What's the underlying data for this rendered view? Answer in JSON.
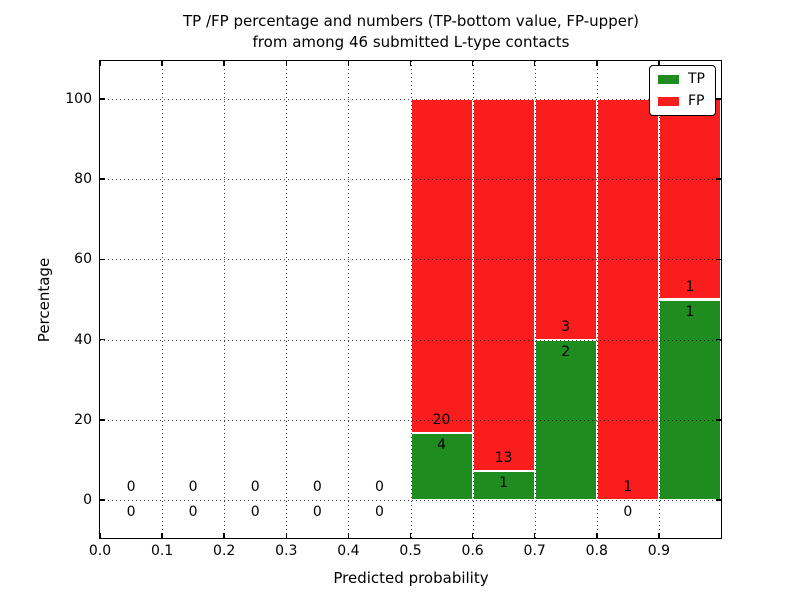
{
  "chart_data": {
    "type": "bar",
    "stacked": true,
    "title_line1": "TP /FP percentage and numbers (TP-bottom value, FP-upper)",
    "title_line2": "from among 46 submitted L-type contacts",
    "xlabel": "Predicted probability",
    "ylabel": "Percentage",
    "total_contacts": 46,
    "xlim": [
      0,
      1.0
    ],
    "ylim": [
      -9.5,
      109.5
    ],
    "x_tick_values": [
      0,
      0.1,
      0.2,
      0.3,
      0.4,
      0.5,
      0.6,
      0.7,
      0.8,
      0.9
    ],
    "x_tick_labels": [
      "0.0",
      "0.1",
      "0.2",
      "0.3",
      "0.4",
      "0.5",
      "0.6",
      "0.7",
      "0.8",
      "0.9"
    ],
    "y_tick_values": [
      0,
      20,
      40,
      60,
      80,
      100
    ],
    "y_tick_labels": [
      "0",
      "20",
      "40",
      "60",
      "80",
      "100"
    ],
    "grid": true,
    "bar_note": "bars stacked to 100%, TP on bottom, FP on top; labels show raw counts",
    "colors": {
      "tp": "#1f8c1f",
      "fp": "#fa1d1d",
      "bar_edge": "#ffffff",
      "grid": "#000000"
    },
    "legend": {
      "position": "upper right",
      "entries": [
        {
          "label": "TP",
          "color": "#1f8c1f"
        },
        {
          "label": "FP",
          "color": "#fa1d1d"
        }
      ]
    },
    "bins": [
      {
        "x0": 0.0,
        "x1": 0.1,
        "tp": 0,
        "fp": 0
      },
      {
        "x0": 0.1,
        "x1": 0.2,
        "tp": 0,
        "fp": 0
      },
      {
        "x0": 0.2,
        "x1": 0.3,
        "tp": 0,
        "fp": 0
      },
      {
        "x0": 0.3,
        "x1": 0.4,
        "tp": 0,
        "fp": 0
      },
      {
        "x0": 0.4,
        "x1": 0.5,
        "tp": 0,
        "fp": 0
      },
      {
        "x0": 0.5,
        "x1": 0.6,
        "tp": 4,
        "fp": 20
      },
      {
        "x0": 0.6,
        "x1": 0.7,
        "tp": 1,
        "fp": 13
      },
      {
        "x0": 0.7,
        "x1": 0.8,
        "tp": 2,
        "fp": 3
      },
      {
        "x0": 0.8,
        "x1": 0.9,
        "tp": 0,
        "fp": 1
      },
      {
        "x0": 0.9,
        "x1": 1.0,
        "tp": 1,
        "fp": 1
      }
    ]
  }
}
